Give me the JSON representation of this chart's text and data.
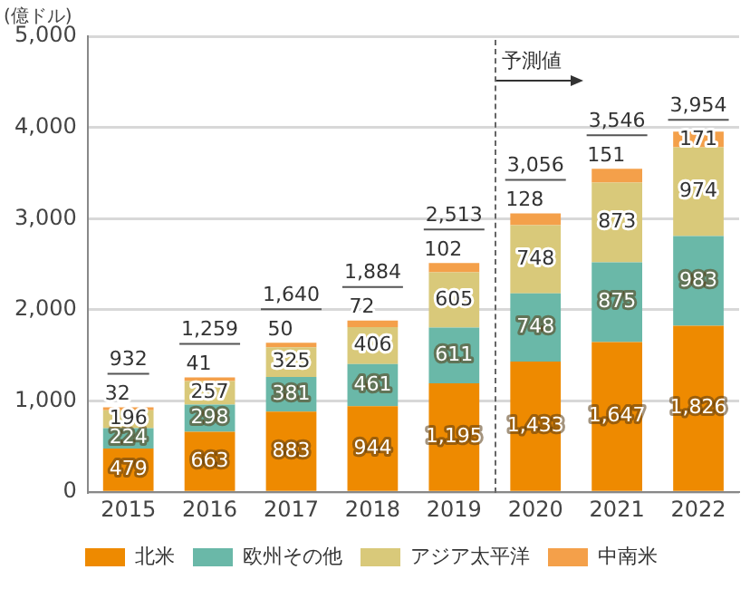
{
  "chart_data": {
    "type": "bar",
    "stacked": true,
    "ylabel": "(億ドル)",
    "categories": [
      "2015",
      "2016",
      "2017",
      "2018",
      "2019",
      "2020",
      "2021",
      "2022"
    ],
    "series": [
      {
        "name": "北米",
        "color": "#ee8a00",
        "values": [
          479,
          663,
          883,
          944,
          1195,
          1433,
          1647,
          1826
        ],
        "value_labels": [
          "479",
          "663",
          "883",
          "944",
          "1,195",
          "1,433",
          "1,647",
          "1,826"
        ]
      },
      {
        "name": "欧州その他",
        "color": "#6ab8a8",
        "values": [
          224,
          298,
          381,
          461,
          611,
          748,
          875,
          983
        ],
        "value_labels": [
          "224",
          "298",
          "381",
          "461",
          "611",
          "748",
          "875",
          "983"
        ]
      },
      {
        "name": "アジア太平洋",
        "color": "#d9c97a",
        "values": [
          196,
          257,
          325,
          406,
          605,
          748,
          873,
          974
        ],
        "value_labels": [
          "196",
          "257",
          "325",
          "406",
          "605",
          "748",
          "873",
          "974"
        ]
      },
      {
        "name": "中南米",
        "color": "#f4a04a",
        "values": [
          32,
          41,
          50,
          72,
          102,
          128,
          151,
          171
        ],
        "value_labels": [
          "32",
          "41",
          "50",
          "72",
          "102",
          "128",
          "151",
          "171"
        ]
      }
    ],
    "totals": [
      "932",
      "1,259",
      "1,640",
      "1,884",
      "2,513",
      "3,056",
      "3,546",
      "3,954"
    ],
    "ylim": [
      0,
      5000
    ],
    "yticks": [
      0,
      {
        "value": 1000,
        "label": "1,000"
      },
      {
        "value": 2000,
        "label": "2,000"
      },
      {
        "value": 3000,
        "label": "3,000"
      },
      {
        "value": 4000,
        "label": "4,000"
      },
      {
        "value": 5000,
        "label": "5,000"
      }
    ],
    "grid": "y",
    "legend": "bottom",
    "ref_lines": [
      {
        "axis": "x",
        "value": "2020",
        "label": "予測値",
        "line_style": "dashed",
        "color": "#666666"
      }
    ]
  }
}
